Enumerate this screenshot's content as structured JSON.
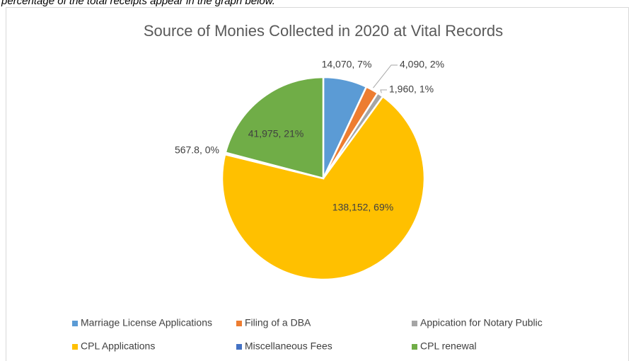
{
  "intro_text": "percentage of the total receipts appear in the graph below.",
  "chart_data": {
    "type": "pie",
    "title": "Source of Monies Collected in 2020 at Vital Records",
    "categories": [
      "Marriage License Applications",
      "Filing of a DBA",
      "Appication for Notary Public",
      "CPL Applications",
      "Miscellaneous Fees",
      "CPL renewal"
    ],
    "values": [
      14070,
      4090,
      1960,
      138152,
      567.8,
      41975
    ],
    "value_labels": [
      "14,070, 7%",
      "4,090, 2%",
      "1,960, 1%",
      "138,152, 69%",
      "567.8, 0%",
      "41,975, 21%"
    ],
    "colors": [
      "#5b9bd5",
      "#ed7d31",
      "#a5a5a5",
      "#ffc000",
      "#4472c4",
      "#70ad47"
    ],
    "legend": "bottom"
  }
}
